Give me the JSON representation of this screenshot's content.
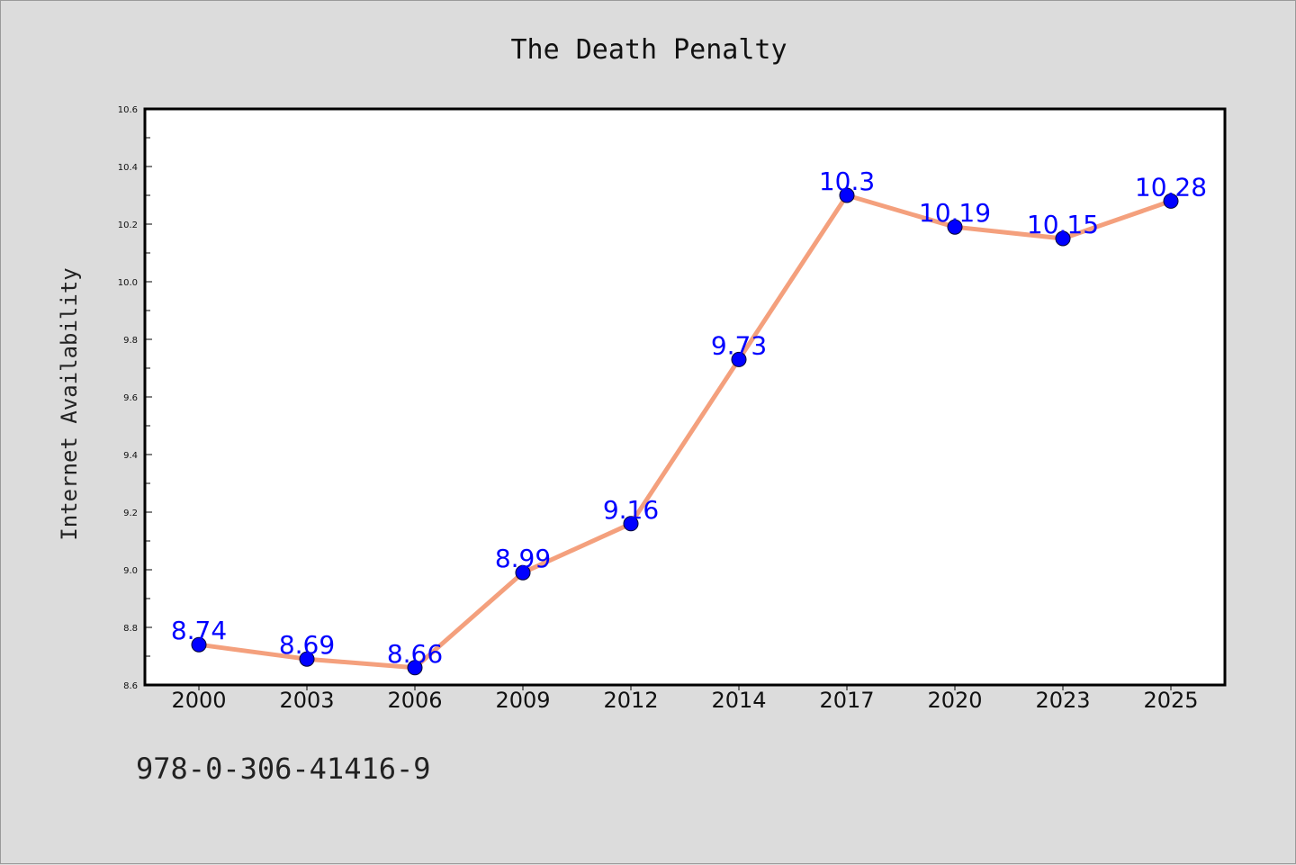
{
  "chart_data": {
    "type": "line",
    "title": "The Death Penalty",
    "xlabel": "",
    "ylabel": "Internet Availability",
    "categories": [
      "2000",
      "2003",
      "2006",
      "2009",
      "2012",
      "2014",
      "2017",
      "2020",
      "2023",
      "2025"
    ],
    "series": [
      {
        "values": [
          8.74,
          8.69,
          8.66,
          8.99,
          9.16,
          9.73,
          10.3,
          10.19,
          10.15,
          10.28
        ],
        "line_color": "#f4a07d",
        "marker_color": "#0000ff",
        "label_color": "#0000ff"
      }
    ],
    "ylim": [
      8.6,
      10.6
    ],
    "yticks": [
      "8.6",
      "8.8",
      "9.0",
      "9.2",
      "9.4",
      "9.6",
      "9.8",
      "10.0",
      "10.2",
      "10.4",
      "10.6"
    ],
    "grid": false,
    "data_labels": true
  },
  "footer": {
    "isbn": "978-0-306-41416-9"
  },
  "colors": {
    "background": "#dcdcdc",
    "plot_area": "#ffffff",
    "axis": "#000000"
  }
}
